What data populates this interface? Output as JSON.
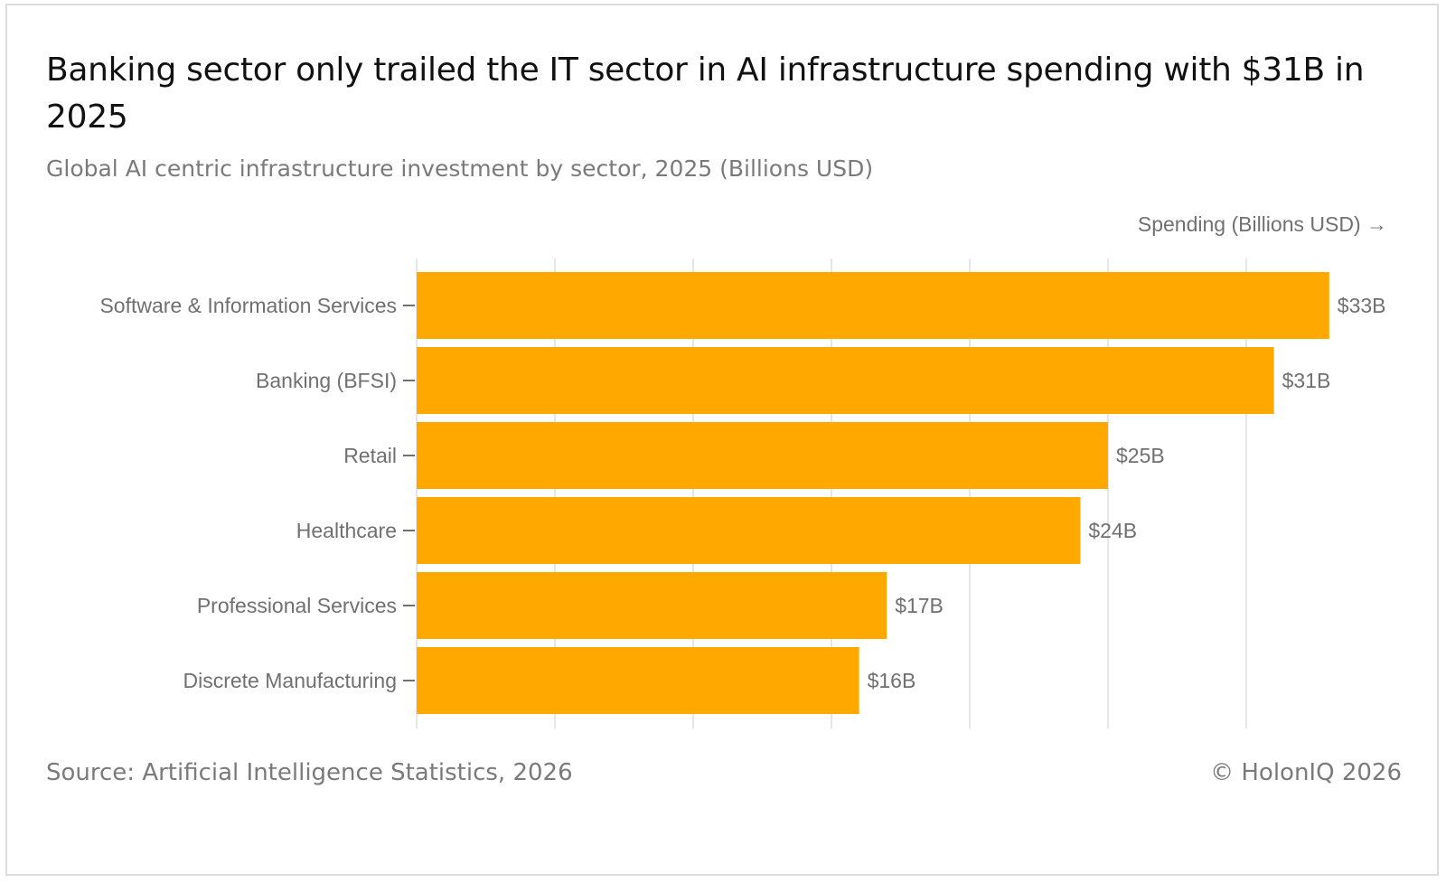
{
  "header": {
    "title": "Banking sector only trailed the IT sector in AI infrastructure spending with $31B in 2025",
    "subtitle": "Global AI centric infrastructure investment by sector, 2025 (Billions USD)"
  },
  "footer": {
    "source": "Source: Artificial Intelligence Statistics, 2026",
    "copyright": "© HolonIQ 2026"
  },
  "chart_data": {
    "type": "bar",
    "orientation": "horizontal",
    "title": "Banking sector only trailed the IT sector in AI infrastructure spending with $31B in 2025",
    "subtitle": "Global AI centric infrastructure investment by sector, 2025 (Billions USD)",
    "xlabel": "Spending (Billions USD) →",
    "ylabel": "",
    "categories": [
      "Software & Information Services",
      "Banking (BFSI)",
      "Retail",
      "Healthcare",
      "Professional Services",
      "Discrete Manufacturing"
    ],
    "values": [
      33,
      31,
      25,
      24,
      17,
      16
    ],
    "data_labels": [
      "$33B",
      "$31B",
      "$25B",
      "$24B",
      "$17B",
      "$16B"
    ],
    "xlim": [
      0,
      35
    ],
    "grid_values": [
      0,
      5,
      10,
      15,
      20,
      25,
      30
    ],
    "grid": true,
    "show_tick_labels": false,
    "bar_color": "#FFA800",
    "grid_color": "#e6e6e6",
    "label_color": "#707070"
  }
}
